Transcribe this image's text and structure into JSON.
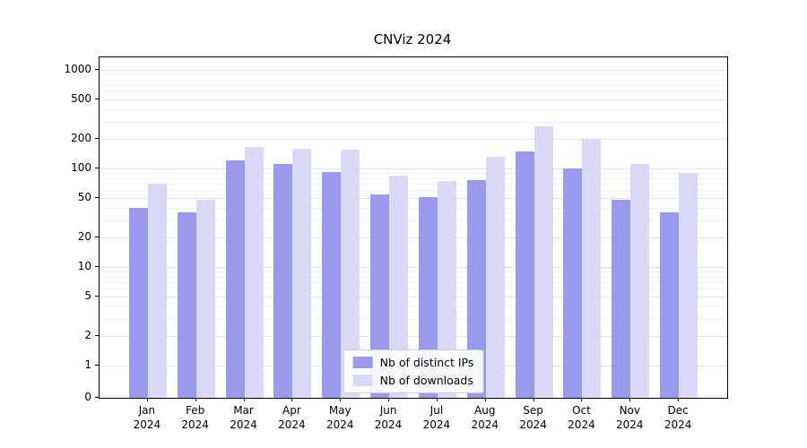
{
  "title": "CNViz 2024",
  "colors": {
    "background": "#ffffff",
    "axis": "#000000",
    "grid_minor": "#f0f0f0",
    "grid_major": "#e3e3e3",
    "text": "#000000"
  },
  "chart_data": {
    "type": "bar",
    "title": "CNViz 2024",
    "scale": "symlog",
    "grid": "horizontal",
    "legend_position": "lower center",
    "ylim": [
      0,
      1200
    ],
    "yticks": [
      0,
      1,
      2,
      5,
      10,
      20,
      50,
      100,
      200,
      500,
      1000
    ],
    "categories": [
      {
        "month": "Jan",
        "year": "2024"
      },
      {
        "month": "Feb",
        "year": "2024"
      },
      {
        "month": "Mar",
        "year": "2024"
      },
      {
        "month": "Apr",
        "year": "2024"
      },
      {
        "month": "May",
        "year": "2024"
      },
      {
        "month": "Jun",
        "year": "2024"
      },
      {
        "month": "Jul",
        "year": "2024"
      },
      {
        "month": "Aug",
        "year": "2024"
      },
      {
        "month": "Sep",
        "year": "2024"
      },
      {
        "month": "Oct",
        "year": "2024"
      },
      {
        "month": "Nov",
        "year": "2024"
      },
      {
        "month": "Dec",
        "year": "2024"
      }
    ],
    "series": [
      {
        "name": "Nb of distinct IPs",
        "color": "#9999ee",
        "values": [
          40,
          36,
          120,
          112,
          92,
          55,
          51,
          76,
          150,
          100,
          48,
          36
        ]
      },
      {
        "name": "Nb of downloads",
        "color": "#d9d9f7",
        "values": [
          70,
          48,
          165,
          160,
          155,
          85,
          75,
          130,
          265,
          200,
          110,
          90
        ]
      }
    ]
  }
}
